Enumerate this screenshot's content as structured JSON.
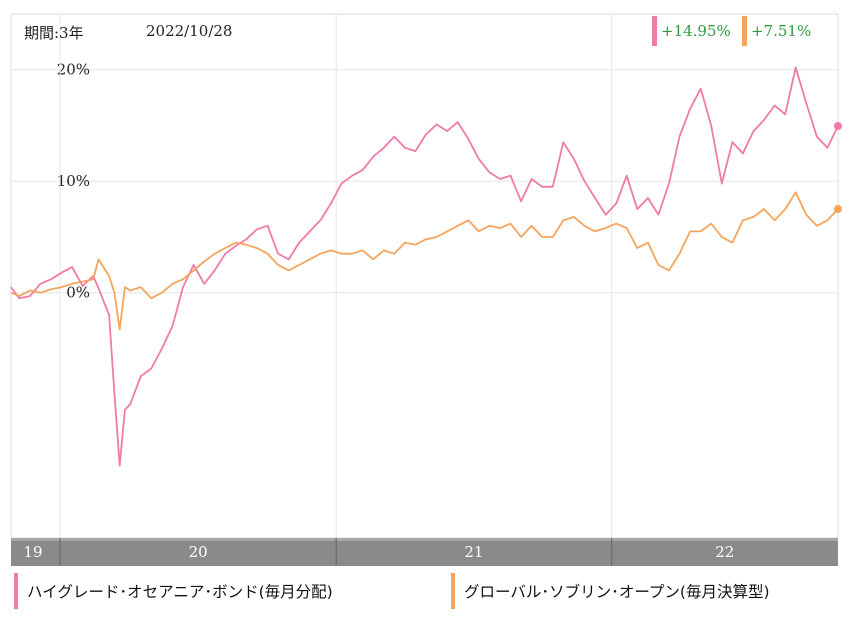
{
  "header": {
    "period": "期間:3年",
    "date": "2022/10/28"
  },
  "returns": [
    {
      "value": "+14.95%",
      "bar_color": "#f07aa8",
      "text_color": "#2e9c3e"
    },
    {
      "value": "+7.51%",
      "bar_color": "#f5a45c",
      "text_color": "#2e9c3e"
    }
  ],
  "legend": [
    {
      "label": "ハイグレード･オセアニア･ボンド(毎月分配)",
      "color": "#f07aa8"
    },
    {
      "label": "グローバル･ソブリン･オープン(毎月決算型)",
      "color": "#f5a45c"
    }
  ],
  "chart_data": {
    "type": "line",
    "x_range": [
      "2019-10-28",
      "2022-10-28"
    ],
    "ylim": [
      -22,
      25
    ],
    "y_ticks": [
      20,
      10,
      0
    ],
    "y_tick_labels": [
      "20%",
      "10%",
      "0%"
    ],
    "x_tick_labels": [
      "19",
      "20",
      "21",
      "22"
    ],
    "x_band_starts": [
      "2019-10-28",
      "2020-01-01",
      "2021-01-01",
      "2022-01-01"
    ],
    "grid": true,
    "colors": {
      "pink": "#f07aa8",
      "orange": "#f5a45c",
      "axis_band": "#8a8a8a",
      "band_top": "#a8a8a8",
      "grid": "#e6e6e6"
    },
    "series": [
      {
        "name": "ハイグレード･オセアニア･ボンド(毎月分配)",
        "color": "#f07aa8",
        "points": [
          [
            "2019-10-28",
            0.5
          ],
          [
            "2019-11-08",
            -0.5
          ],
          [
            "2019-11-22",
            -0.3
          ],
          [
            "2019-12-06",
            0.8
          ],
          [
            "2019-12-20",
            1.2
          ],
          [
            "2020-01-03",
            1.8
          ],
          [
            "2020-01-17",
            2.3
          ],
          [
            "2020-01-31",
            0.6
          ],
          [
            "2020-02-14",
            1.5
          ],
          [
            "2020-02-21",
            0.4
          ],
          [
            "2020-03-06",
            -2.0
          ],
          [
            "2020-03-13",
            -9.0
          ],
          [
            "2020-03-20",
            -15.5
          ],
          [
            "2020-03-27",
            -10.5
          ],
          [
            "2020-04-03",
            -10.0
          ],
          [
            "2020-04-17",
            -7.5
          ],
          [
            "2020-05-01",
            -6.8
          ],
          [
            "2020-05-15",
            -5.0
          ],
          [
            "2020-05-29",
            -3.0
          ],
          [
            "2020-06-12",
            0.5
          ],
          [
            "2020-06-26",
            2.5
          ],
          [
            "2020-07-10",
            0.8
          ],
          [
            "2020-07-24",
            2.0
          ],
          [
            "2020-08-07",
            3.5
          ],
          [
            "2020-08-21",
            4.2
          ],
          [
            "2020-09-04",
            4.8
          ],
          [
            "2020-09-18",
            5.7
          ],
          [
            "2020-10-02",
            6.0
          ],
          [
            "2020-10-16",
            3.5
          ],
          [
            "2020-10-30",
            3.0
          ],
          [
            "2020-11-13",
            4.5
          ],
          [
            "2020-11-27",
            5.5
          ],
          [
            "2020-12-11",
            6.5
          ],
          [
            "2020-12-25",
            8.0
          ],
          [
            "2021-01-08",
            9.8
          ],
          [
            "2021-01-22",
            10.5
          ],
          [
            "2021-02-05",
            11.0
          ],
          [
            "2021-02-19",
            12.2
          ],
          [
            "2021-03-05",
            13.0
          ],
          [
            "2021-03-19",
            14.0
          ],
          [
            "2021-04-02",
            13.0
          ],
          [
            "2021-04-16",
            12.7
          ],
          [
            "2021-04-30",
            14.2
          ],
          [
            "2021-05-14",
            15.1
          ],
          [
            "2021-05-28",
            14.5
          ],
          [
            "2021-06-11",
            15.3
          ],
          [
            "2021-06-25",
            13.8
          ],
          [
            "2021-07-09",
            12.0
          ],
          [
            "2021-07-23",
            10.8
          ],
          [
            "2021-08-06",
            10.2
          ],
          [
            "2021-08-20",
            10.5
          ],
          [
            "2021-09-03",
            8.2
          ],
          [
            "2021-09-17",
            10.2
          ],
          [
            "2021-10-01",
            9.5
          ],
          [
            "2021-10-15",
            9.5
          ],
          [
            "2021-10-29",
            13.5
          ],
          [
            "2021-11-12",
            12.0
          ],
          [
            "2021-11-26",
            10.0
          ],
          [
            "2021-12-10",
            8.5
          ],
          [
            "2021-12-24",
            7.0
          ],
          [
            "2022-01-07",
            8.0
          ],
          [
            "2022-01-21",
            10.5
          ],
          [
            "2022-02-04",
            7.5
          ],
          [
            "2022-02-18",
            8.5
          ],
          [
            "2022-03-04",
            7.0
          ],
          [
            "2022-03-18",
            9.8
          ],
          [
            "2022-04-01",
            14.0
          ],
          [
            "2022-04-15",
            16.5
          ],
          [
            "2022-04-29",
            18.3
          ],
          [
            "2022-05-13",
            15.0
          ],
          [
            "2022-05-27",
            9.8
          ],
          [
            "2022-06-10",
            13.5
          ],
          [
            "2022-06-24",
            12.5
          ],
          [
            "2022-07-08",
            14.5
          ],
          [
            "2022-07-22",
            15.5
          ],
          [
            "2022-08-05",
            16.8
          ],
          [
            "2022-08-19",
            16.0
          ],
          [
            "2022-09-02",
            20.2
          ],
          [
            "2022-09-16",
            17.0
          ],
          [
            "2022-09-30",
            14.0
          ],
          [
            "2022-10-14",
            13.0
          ],
          [
            "2022-10-28",
            14.95
          ]
        ]
      },
      {
        "name": "グローバル･ソブリン･オープン(毎月決算型)",
        "color": "#f5a45c",
        "points": [
          [
            "2019-10-28",
            0.0
          ],
          [
            "2019-11-08",
            -0.3
          ],
          [
            "2019-11-22",
            0.2
          ],
          [
            "2019-12-06",
            0.0
          ],
          [
            "2019-12-20",
            0.3
          ],
          [
            "2020-01-03",
            0.5
          ],
          [
            "2020-01-17",
            0.8
          ],
          [
            "2020-01-31",
            1.0
          ],
          [
            "2020-02-14",
            1.2
          ],
          [
            "2020-02-21",
            3.0
          ],
          [
            "2020-03-06",
            1.5
          ],
          [
            "2020-03-13",
            0.0
          ],
          [
            "2020-03-20",
            -3.3
          ],
          [
            "2020-03-27",
            0.5
          ],
          [
            "2020-04-03",
            0.2
          ],
          [
            "2020-04-17",
            0.5
          ],
          [
            "2020-05-01",
            -0.5
          ],
          [
            "2020-05-15",
            0.0
          ],
          [
            "2020-05-29",
            0.8
          ],
          [
            "2020-06-12",
            1.2
          ],
          [
            "2020-06-26",
            2.0
          ],
          [
            "2020-07-10",
            2.8
          ],
          [
            "2020-07-24",
            3.5
          ],
          [
            "2020-08-07",
            4.0
          ],
          [
            "2020-08-21",
            4.5
          ],
          [
            "2020-09-04",
            4.3
          ],
          [
            "2020-09-18",
            4.0
          ],
          [
            "2020-10-02",
            3.5
          ],
          [
            "2020-10-16",
            2.5
          ],
          [
            "2020-10-30",
            2.0
          ],
          [
            "2020-11-13",
            2.5
          ],
          [
            "2020-11-27",
            3.0
          ],
          [
            "2020-12-11",
            3.5
          ],
          [
            "2020-12-25",
            3.8
          ],
          [
            "2021-01-08",
            3.5
          ],
          [
            "2021-01-22",
            3.5
          ],
          [
            "2021-02-05",
            3.8
          ],
          [
            "2021-02-19",
            3.0
          ],
          [
            "2021-03-05",
            3.8
          ],
          [
            "2021-03-19",
            3.5
          ],
          [
            "2021-04-02",
            4.5
          ],
          [
            "2021-04-16",
            4.3
          ],
          [
            "2021-04-30",
            4.8
          ],
          [
            "2021-05-14",
            5.0
          ],
          [
            "2021-05-28",
            5.5
          ],
          [
            "2021-06-11",
            6.0
          ],
          [
            "2021-06-25",
            6.5
          ],
          [
            "2021-07-09",
            5.5
          ],
          [
            "2021-07-23",
            6.0
          ],
          [
            "2021-08-06",
            5.8
          ],
          [
            "2021-08-20",
            6.2
          ],
          [
            "2021-09-03",
            5.0
          ],
          [
            "2021-09-17",
            6.0
          ],
          [
            "2021-10-01",
            5.0
          ],
          [
            "2021-10-15",
            5.0
          ],
          [
            "2021-10-29",
            6.5
          ],
          [
            "2021-11-12",
            6.8
          ],
          [
            "2021-11-26",
            6.0
          ],
          [
            "2021-12-10",
            5.5
          ],
          [
            "2021-12-24",
            5.8
          ],
          [
            "2022-01-07",
            6.2
          ],
          [
            "2022-01-21",
            5.8
          ],
          [
            "2022-02-04",
            4.0
          ],
          [
            "2022-02-18",
            4.5
          ],
          [
            "2022-03-04",
            2.5
          ],
          [
            "2022-03-18",
            2.0
          ],
          [
            "2022-04-01",
            3.5
          ],
          [
            "2022-04-15",
            5.5
          ],
          [
            "2022-04-29",
            5.5
          ],
          [
            "2022-05-13",
            6.2
          ],
          [
            "2022-05-27",
            5.0
          ],
          [
            "2022-06-10",
            4.5
          ],
          [
            "2022-06-24",
            6.5
          ],
          [
            "2022-07-08",
            6.8
          ],
          [
            "2022-07-22",
            7.5
          ],
          [
            "2022-08-05",
            6.5
          ],
          [
            "2022-08-19",
            7.5
          ],
          [
            "2022-09-02",
            9.0
          ],
          [
            "2022-09-16",
            7.0
          ],
          [
            "2022-09-30",
            6.0
          ],
          [
            "2022-10-14",
            6.5
          ],
          [
            "2022-10-28",
            7.51
          ]
        ]
      }
    ]
  }
}
